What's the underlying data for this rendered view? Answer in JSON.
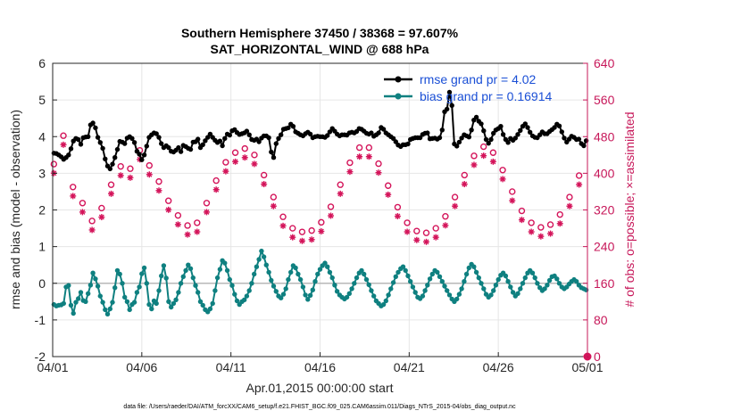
{
  "chart_data": {
    "type": "line",
    "title": "Southern Hemisphere 37450 / 38368 = 97.607%",
    "subtitle": "SAT_HORIZONTAL_WIND @ 688 hPa",
    "xlabel": "Apr.01,2015 00:00:00 start",
    "ylabel": "rmse and bias (model - observation)",
    "ylabel_right": "# of obs: o=possible; ×=assimilated",
    "footer": "data file: /Users/raeder/DAI/ATM_forcXX/CAM6_setup/f.e21.FHIST_BGC.f09_025.CAM6assim.011/Diags_NTrS_2015-04/obs_diag_output.nc",
    "xlim": [
      0,
      30
    ],
    "ylim": [
      -2,
      6
    ],
    "ylim_right": [
      0,
      640
    ],
    "x_ticks": [
      "04/01",
      "04/06",
      "04/11",
      "04/16",
      "04/21",
      "04/26",
      "05/01"
    ],
    "y_ticks": [
      "-2",
      "-1",
      "0",
      "1",
      "2",
      "3",
      "4",
      "5",
      "6"
    ],
    "y_ticks_right": [
      "0",
      "80",
      "160",
      "240",
      "320",
      "400",
      "480",
      "560",
      "640"
    ],
    "zero_line": 0,
    "legend": [
      "rmse grand pr = 4.02",
      "bias grand pr = 0.16914"
    ],
    "series": [
      {
        "name": "rmse",
        "color": "#000000",
        "values": [
          3.55,
          3.54,
          3.5,
          3.45,
          3.38,
          3.43,
          3.5,
          3.67,
          3.88,
          3.95,
          3.92,
          3.79,
          3.97,
          3.99,
          4.0,
          4.32,
          4.37,
          4.24,
          3.98,
          3.84,
          3.68,
          3.39,
          3.2,
          3.12,
          3.25,
          3.43,
          3.65,
          3.87,
          3.85,
          3.81,
          3.96,
          4.0,
          3.95,
          3.84,
          3.6,
          3.52,
          3.37,
          3.5,
          3.74,
          3.98,
          4.05,
          4.1,
          4.08,
          3.98,
          3.81,
          3.7,
          3.75,
          3.7,
          3.6,
          3.58,
          3.63,
          3.7,
          3.59,
          3.76,
          3.73,
          3.68,
          3.65,
          3.85,
          3.86,
          3.93,
          3.7,
          3.78,
          3.89,
          3.98,
          4.07,
          3.98,
          3.9,
          3.84,
          3.88,
          3.75,
          3.95,
          4.07,
          4.04,
          4.16,
          4.19,
          4.11,
          4.06,
          4.08,
          4.1,
          4.15,
          4.05,
          3.92,
          3.9,
          3.93,
          3.86,
          3.96,
          4.02,
          4.02,
          3.97,
          3.58,
          3.43,
          3.81,
          3.95,
          4.05,
          4.2,
          4.22,
          4.24,
          4.34,
          4.28,
          4.13,
          4.09,
          4.05,
          4.02,
          4.08,
          4.12,
          4.07,
          3.97,
          4.0,
          4.01,
          4.0,
          4.0,
          3.98,
          4.03,
          4.13,
          4.22,
          4.15,
          4.07,
          4.02,
          4.05,
          4.05,
          4.04,
          4.1,
          4.12,
          4.1,
          4.14,
          4.22,
          4.2,
          4.15,
          4.09,
          4.07,
          4.1,
          4.01,
          4.05,
          4.1,
          4.25,
          4.2,
          4.1,
          4.05,
          4.0,
          3.95,
          3.86,
          3.77,
          3.73,
          3.78,
          3.78,
          3.8,
          3.92,
          3.95,
          3.97,
          3.97,
          3.97,
          4.06,
          4.09,
          4.1,
          3.94,
          3.95,
          3.96,
          3.93,
          3.97,
          4.18,
          4.68,
          4.75,
          5.21,
          4.85,
          3.8,
          3.74,
          3.85,
          3.96,
          4.05,
          4.02,
          3.99,
          4.18,
          4.45,
          4.53,
          4.42,
          4.35,
          4.16,
          3.92,
          3.82,
          3.92,
          4.09,
          4.18,
          4.22,
          4.28,
          4.06,
          3.92,
          3.84,
          3.95,
          3.9,
          3.96,
          4.06,
          4.17,
          4.28,
          4.35,
          4.25,
          4.12,
          4.02,
          3.98,
          3.97,
          4.05,
          4.13,
          4.08,
          4.08,
          4.14,
          4.19,
          4.25,
          4.34,
          4.29,
          4.13,
          3.96,
          3.85,
          3.93,
          4.01,
          3.98,
          3.92,
          3.93,
          3.81,
          3.75,
          3.89
        ]
      },
      {
        "name": "bias",
        "color": "#0f8080",
        "values": [
          -0.58,
          -0.62,
          -0.6,
          -0.59,
          -0.55,
          -0.1,
          -0.06,
          -0.6,
          -0.82,
          -0.52,
          -0.42,
          -0.25,
          -0.47,
          -0.5,
          -0.28,
          -0.05,
          0.28,
          0.12,
          -0.08,
          -0.35,
          -0.52,
          -0.72,
          -0.84,
          -0.7,
          -0.52,
          -0.12,
          0.35,
          0.25,
          0.0,
          -0.38,
          -0.5,
          -0.72,
          -0.58,
          -0.52,
          -0.25,
          -0.1,
          0.26,
          0.42,
          0.0,
          -0.58,
          -0.7,
          -0.48,
          -0.55,
          -0.2,
          0.2,
          0.48,
          0.14,
          -0.5,
          -0.65,
          -0.55,
          -0.45,
          -0.25,
          0.0,
          0.18,
          0.35,
          0.5,
          0.4,
          0.15,
          -0.06,
          -0.25,
          -0.5,
          -0.6,
          -0.72,
          -0.78,
          -0.7,
          -0.55,
          -0.2,
          0.15,
          0.38,
          0.62,
          0.55,
          0.35,
          0.1,
          -0.06,
          -0.3,
          -0.48,
          -0.58,
          -0.5,
          -0.45,
          -0.35,
          -0.2,
          0.0,
          0.25,
          0.45,
          0.65,
          0.88,
          0.72,
          0.5,
          0.3,
          0.08,
          -0.08,
          -0.22,
          -0.35,
          -0.4,
          -0.3,
          -0.15,
          0.1,
          0.3,
          0.48,
          0.42,
          0.25,
          0.1,
          -0.1,
          -0.32,
          -0.44,
          -0.33,
          -0.18,
          0.05,
          0.25,
          0.38,
          0.48,
          0.55,
          0.45,
          0.3,
          0.15,
          -0.05,
          -0.22,
          -0.32,
          -0.38,
          -0.43,
          -0.38,
          -0.28,
          -0.15,
          0.0,
          0.15,
          0.28,
          0.35,
          0.25,
          0.1,
          -0.04,
          -0.2,
          -0.35,
          -0.48,
          -0.55,
          -0.62,
          -0.58,
          -0.48,
          -0.32,
          -0.15,
          0.02,
          0.18,
          0.3,
          0.4,
          0.45,
          0.35,
          0.2,
          0.05,
          -0.1,
          -0.25,
          -0.38,
          -0.42,
          -0.35,
          -0.2,
          -0.05,
          0.12,
          0.25,
          0.35,
          0.3,
          0.18,
          0.05,
          -0.08,
          -0.2,
          -0.32,
          -0.43,
          -0.5,
          -0.43,
          -0.3,
          -0.15,
          0.05,
          0.25,
          0.42,
          0.52,
          0.45,
          0.3,
          0.15,
          0.0,
          -0.15,
          -0.3,
          -0.38,
          -0.32,
          -0.2,
          -0.05,
          0.1,
          0.22,
          0.28,
          0.2,
          0.05,
          -0.1,
          -0.25,
          -0.35,
          -0.28,
          -0.15,
          0.0,
          0.15,
          0.28,
          0.35,
          0.28,
          0.15,
          0.0,
          -0.12,
          -0.2,
          -0.15,
          -0.05,
          0.08,
          0.18,
          0.2,
          0.12,
          0.0,
          -0.1,
          -0.15,
          -0.1,
          -0.02,
          0.05,
          0.1,
          0.05,
          -0.05,
          -0.12,
          -0.15,
          -0.18
        ]
      },
      {
        "name": "obs possible",
        "color": "#d4145a",
        "axis": "right",
        "values": [
          420,
          412,
          410,
          418,
          482,
          480,
          423,
          370,
          370,
          372,
          365,
          345,
          335,
          340,
          325,
          300,
          296,
          304,
          312,
          318,
          324,
          345,
          360,
          375,
          375,
          380,
          382,
          410,
          415,
          400,
          395,
          400,
          410,
          420,
          435,
          455,
          450,
          440,
          432,
          425,
          417,
          408,
          400,
          390,
          382,
          375,
          365,
          352,
          340,
          330,
          322,
          315,
          308,
          300,
          295,
          290,
          286,
          282,
          280,
          285,
          292,
          300,
          310,
          322,
          335,
          348,
          360,
          372,
          384,
          395,
          405,
          415,
          424,
          432,
          438,
          442,
          445,
          448,
          450,
          452,
          454,
          455,
          452,
          448,
          440,
          430,
          420,
          408,
          396,
          384,
          372,
          360,
          348,
          336,
          325,
          315,
          305,
          297,
          290,
          285,
          280,
          277,
          275,
          273,
          272,
          272,
          272,
          273,
          275,
          278,
          282,
          287,
          293,
          300,
          308,
          317,
          327,
          338,
          350,
          362,
          375,
          388,
          400,
          412,
          423,
          433,
          442,
          450,
          456,
          460,
          462,
          460,
          456,
          450,
          442,
          432,
          421,
          409,
          397,
          385,
          373,
          361,
          349,
          337,
          326,
          316,
          307,
          299,
          292,
          286,
          281,
          277,
          274,
          272,
          271,
          270,
          270,
          271,
          273,
          276,
          280,
          285,
          291,
          298,
          306,
          315,
          325,
          336,
          348,
          360,
          372,
          384,
          396,
          408,
          419,
          429,
          438,
          446,
          452,
          456,
          458,
          458,
          455,
          451,
          445,
          437,
          428,
          418,
          407,
          396,
          384,
          372,
          360,
          348,
          337,
          327,
          318,
          310,
          303,
          297,
          292,
          288,
          285,
          283,
          282,
          282,
          283,
          285,
          288,
          292,
          297,
          303,
          310,
          318,
          327,
          337,
          348,
          359,
          371,
          383,
          395,
          407,
          418,
          428
        ]
      },
      {
        "name": "obs assimilated",
        "color": "#d4145a",
        "axis": "right",
        "values": [
          412,
          405,
          402,
          410,
          474,
          472,
          415,
          362,
          362,
          364,
          357,
          337,
          327,
          332,
          317,
          292,
          288,
          296,
          304,
          310,
          316,
          337,
          352,
          367,
          367,
          372,
          374,
          402,
          407,
          392,
          387,
          392,
          402,
          412,
          427,
          447,
          442,
          432,
          424,
          417,
          409,
          400,
          392,
          382,
          374,
          367,
          357,
          344,
          332,
          322,
          314,
          307,
          300,
          292,
          287,
          282,
          278,
          274,
          272,
          277,
          284,
          292,
          302,
          314,
          327,
          340,
          352,
          364,
          376,
          387,
          397,
          407,
          416,
          424,
          430,
          434,
          437,
          440,
          442,
          444,
          446,
          447,
          444,
          440,
          432,
          422,
          412,
          400,
          388,
          376,
          364,
          352,
          340,
          328,
          317,
          307,
          297,
          289,
          282,
          277,
          272,
          269,
          267,
          265,
          264,
          264,
          264,
          265,
          267,
          270,
          274,
          279,
          285,
          292,
          300,
          309,
          319,
          330,
          342,
          354,
          367,
          380,
          392,
          404,
          415,
          425,
          434,
          442,
          448,
          452,
          454,
          452,
          448,
          442,
          434,
          424,
          413,
          401,
          389,
          377,
          365,
          353,
          341,
          329,
          318,
          308,
          299,
          291,
          284,
          278,
          273,
          269,
          266,
          264,
          263,
          262,
          262,
          263,
          265,
          268,
          272,
          277,
          283,
          290,
          298,
          307,
          317,
          328,
          340,
          352,
          364,
          376,
          388,
          400,
          411,
          421,
          430,
          438,
          444,
          448,
          450,
          450,
          447,
          443,
          437,
          429,
          420,
          410,
          399,
          388,
          376,
          364,
          352,
          340,
          329,
          319,
          310,
          302,
          295,
          289,
          284,
          280,
          277,
          275,
          274,
          274,
          275,
          277,
          280,
          284,
          289,
          295,
          302,
          310,
          319,
          329,
          340,
          351,
          363,
          375,
          387,
          399,
          410,
          420
        ]
      }
    ]
  }
}
